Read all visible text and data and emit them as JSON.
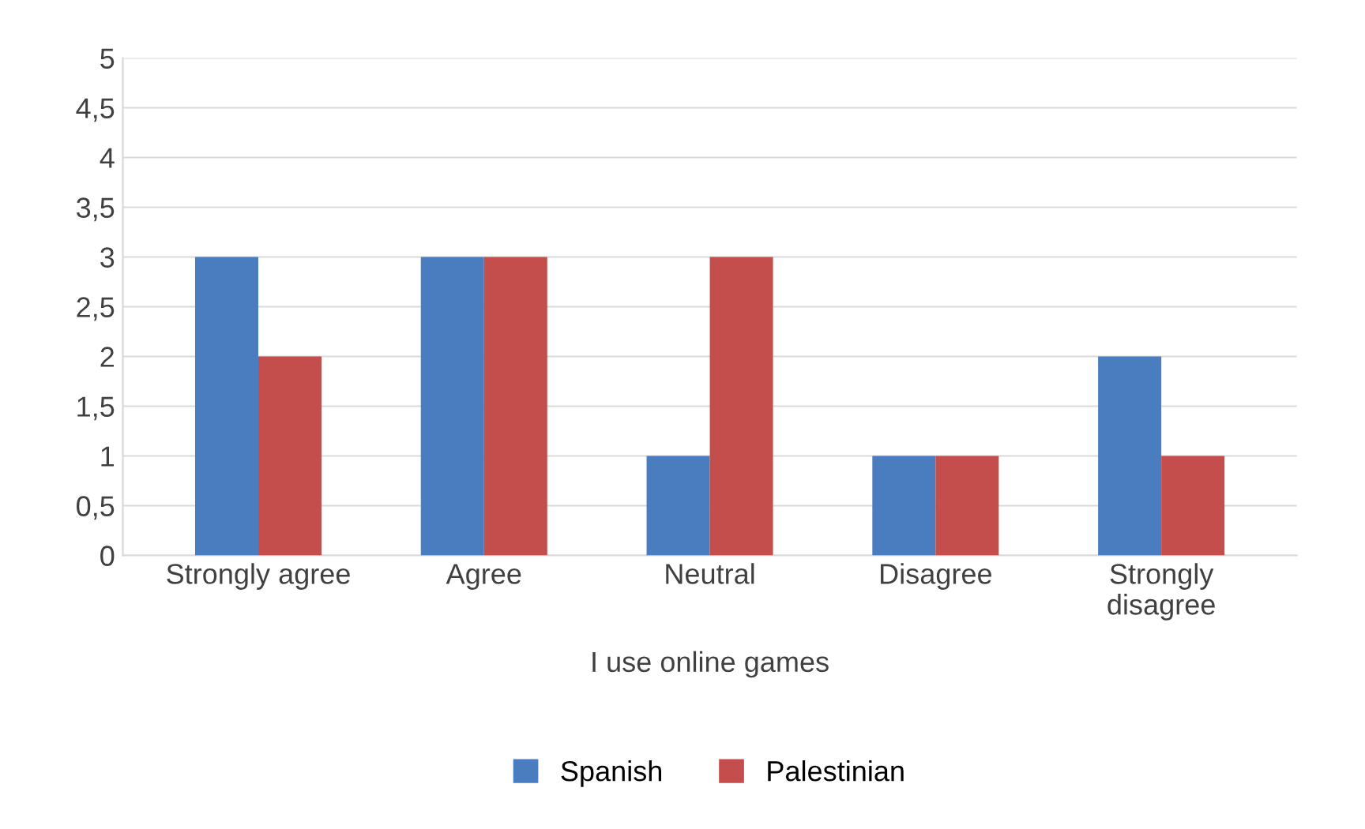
{
  "chart_data": {
    "type": "bar",
    "xlabel": "I use online games",
    "categories": [
      "Strongly agree",
      "Agree",
      "Neutral",
      "Disagree",
      "Strongly\ndisagree"
    ],
    "series": [
      {
        "name": "Spanish",
        "color": "#4a7cc0",
        "values": [
          3,
          3,
          1,
          1,
          2
        ]
      },
      {
        "name": "Palestinian",
        "color": "#c44e4b",
        "values": [
          2,
          3,
          3,
          1,
          1
        ]
      }
    ],
    "ylim": [
      0,
      5
    ],
    "yticks": [
      0,
      {
        "value": 0.5,
        "label": "0,5"
      },
      1,
      {
        "value": 1.5,
        "label": "1,5"
      },
      2,
      {
        "value": 2.5,
        "label": "2,5"
      },
      3,
      {
        "value": 3.5,
        "label": "3,5"
      },
      4,
      {
        "value": 4.5,
        "label": "4,5"
      },
      5
    ],
    "grid": "y",
    "legend": "bottom"
  }
}
